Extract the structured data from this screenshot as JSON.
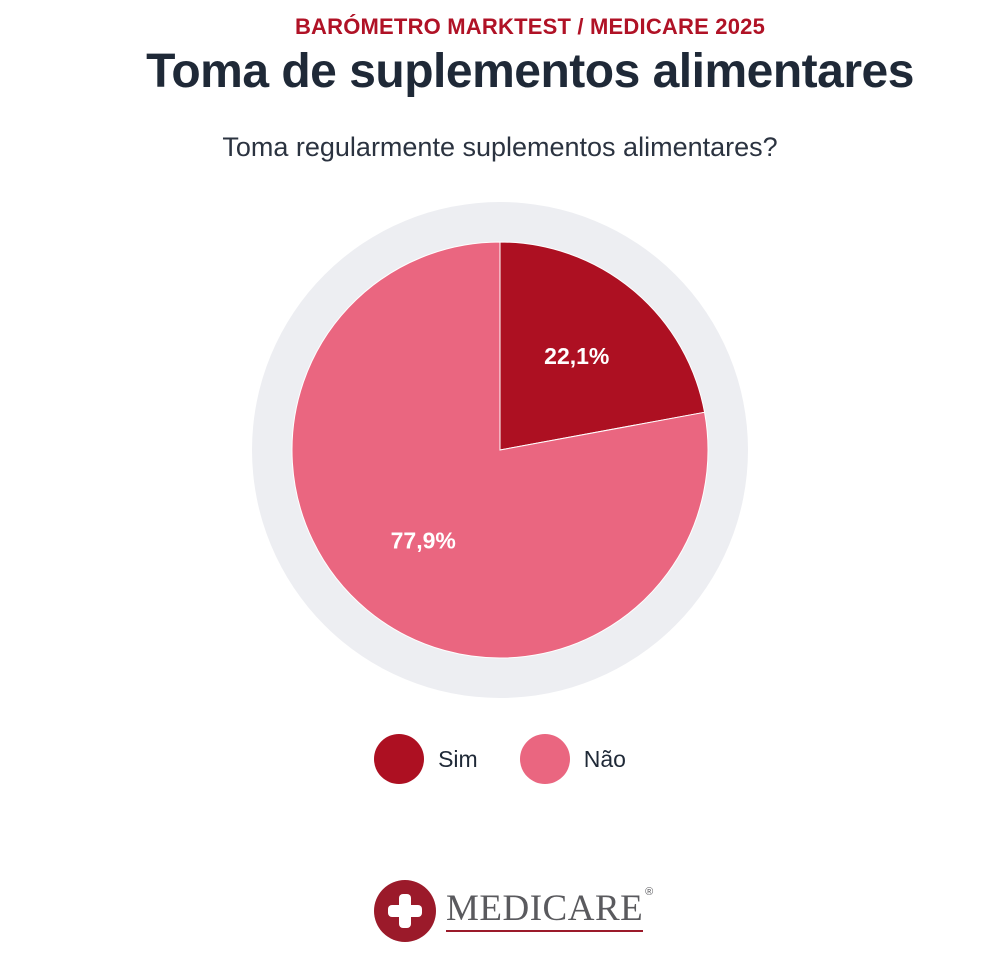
{
  "header": {
    "kicker": "BARÓMETRO MARKTEST / MEDICARE 2025",
    "title": "Toma de suplementos alimentares",
    "question": "Toma regularmente suplementos alimentares?"
  },
  "colors": {
    "kicker": "#b01226",
    "sim": "#ad1022",
    "nao": "#ea6680",
    "ring": "#edeef2",
    "label": "#ffffff",
    "logo_mark": "#9b1a2a",
    "logo_text": "#5a5a5e"
  },
  "chart_data": {
    "type": "pie",
    "title": "Toma regularmente suplementos alimentares?",
    "categories": [
      "Sim",
      "Não"
    ],
    "values": [
      22.1,
      77.9
    ],
    "labels": [
      "22,1%",
      "77,9%"
    ],
    "unit": "%",
    "legend_position": "bottom-center"
  },
  "legend": {
    "items": [
      {
        "label": "Sim"
      },
      {
        "label": "Não"
      }
    ]
  },
  "logo": {
    "text": "MEDICARE",
    "reg_mark": "®"
  }
}
